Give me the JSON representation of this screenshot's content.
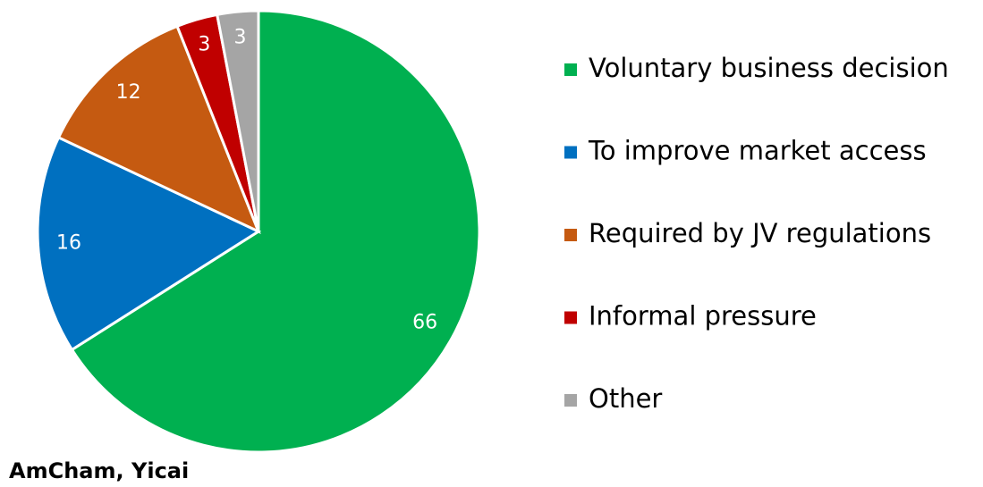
{
  "chart_data": {
    "type": "pie",
    "categories": [
      "Voluntary business decision",
      "To improve market access",
      "Required by JV regulations",
      "Informal pressure",
      "Other"
    ],
    "values": [
      66,
      16,
      12,
      3,
      3
    ],
    "colors": [
      "#00b050",
      "#0070c0",
      "#c55a11",
      "#c00000",
      "#a5a5a5"
    ],
    "source": "AmCham, Yicai",
    "legend": "right"
  }
}
